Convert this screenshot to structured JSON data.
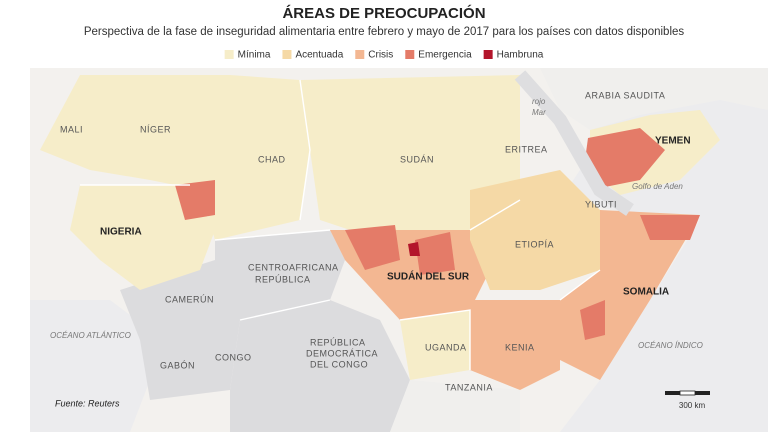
{
  "header": {
    "title": "ÁREAS DE PREOCUPACIÓN",
    "subtitle": "Perspectiva de la fase de inseguridad alimentaria entre febrero y mayo de 2017 para los países con datos disponibles"
  },
  "legend": [
    {
      "label": "Mínima",
      "color": "#f6edc9"
    },
    {
      "label": "Acentuada",
      "color": "#f5d9a6"
    },
    {
      "label": "Crisis",
      "color": "#f3b792"
    },
    {
      "label": "Emergencia",
      "color": "#e47b68"
    },
    {
      "label": "Hambruna",
      "color": "#b3152b"
    }
  ],
  "map_labels": [
    [
      "MALI"
    ],
    [
      "NÍGER"
    ],
    [
      "CHAD"
    ],
    [
      "SUDÁN"
    ],
    [
      "ERITREA"
    ],
    [
      "ARABIA SAUDITA"
    ],
    [
      "YEMEN"
    ],
    [
      "rojo",
      "Mar"
    ],
    [
      "Golfo de Aden"
    ],
    [
      "YIBUTI"
    ],
    [
      "NIGERIA"
    ],
    [
      "CENTROAFRICANA",
      "REPÚBLICA"
    ],
    [
      "SUDÁN DEL SUR"
    ],
    [
      "ETIOPÍA"
    ],
    [
      "SOMALIA"
    ],
    [
      "CAMERÚN"
    ],
    [
      "OCÉANO ATLÁNTICO"
    ],
    [
      "GABÓN"
    ],
    [
      "CONGO"
    ],
    [
      "REPÚBLICA",
      "DEMOCRÁTICA",
      "DEL CONGO"
    ],
    [
      "UGANDA"
    ],
    [
      "KENIA"
    ],
    [
      "TANZANIA"
    ],
    [
      "OCÉANO ÍNDICO"
    ]
  ],
  "source": "Fuente: Reuters",
  "scale": "300 km"
}
